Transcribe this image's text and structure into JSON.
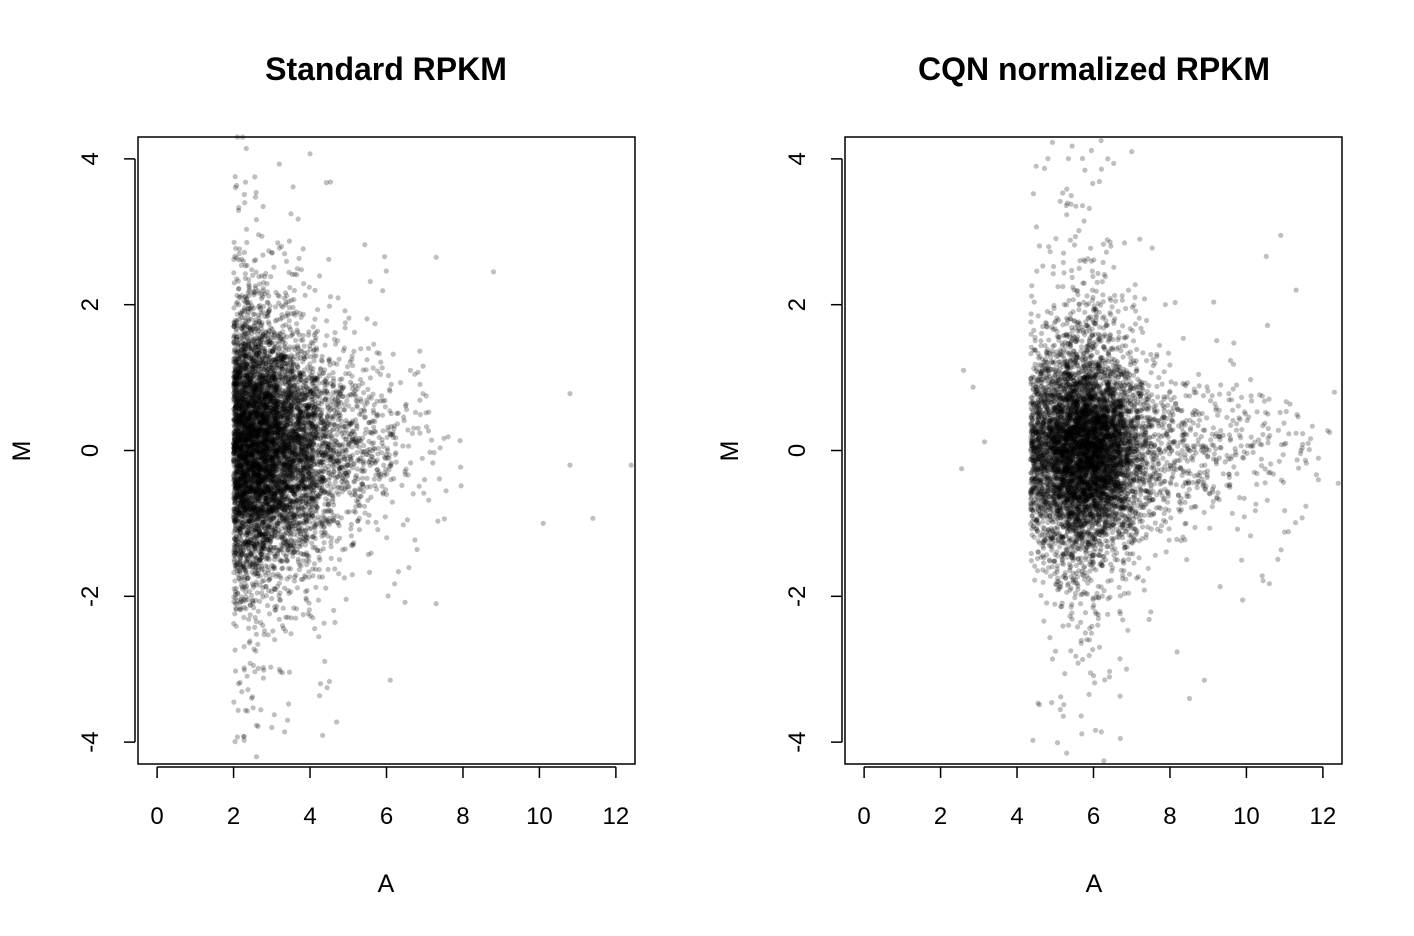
{
  "chart_data": [
    {
      "type": "scatter",
      "title": "Standard RPKM",
      "xlabel": "A",
      "ylabel": "M",
      "xlim": [
        -0.5,
        12.5
      ],
      "ylim": [
        -4.3,
        4.3
      ],
      "xticks": [
        "0",
        "2",
        "4",
        "6",
        "8",
        "10",
        "12"
      ],
      "yticks": [
        "-4",
        "-2",
        "0",
        "2",
        "4"
      ],
      "grid": false,
      "point_color": "#000000",
      "point_opacity": 0.25,
      "n_points": 7000,
      "distribution": {
        "x_min": 2.0,
        "x_core_range": [
          2.0,
          6.0
        ],
        "x_max": 12.5,
        "y_center": 0.05,
        "y_core_spread": 0.6,
        "y_range": [
          -4.2,
          4.3
        ]
      },
      "notable_points": [
        {
          "x": 2.1,
          "y": 4.3
        },
        {
          "x": 4.0,
          "y": 4.07
        },
        {
          "x": 2.6,
          "y": -4.2
        },
        {
          "x": 8.8,
          "y": 2.45
        },
        {
          "x": 10.8,
          "y": -0.2
        },
        {
          "x": 12.4,
          "y": -0.2
        },
        {
          "x": 11.4,
          "y": -0.93
        },
        {
          "x": 10.1,
          "y": -1.0
        },
        {
          "x": 7.3,
          "y": -2.1
        },
        {
          "x": 6.1,
          "y": -3.15
        },
        {
          "x": 2.1,
          "y": -3.93
        },
        {
          "x": 3.0,
          "y": -3.8
        },
        {
          "x": 10.8,
          "y": 0.78
        },
        {
          "x": 7.3,
          "y": 2.65
        }
      ]
    },
    {
      "type": "scatter",
      "title": "CQN normalized RPKM",
      "xlabel": "A",
      "ylabel": "M",
      "xlim": [
        -0.5,
        12.5
      ],
      "ylim": [
        -4.3,
        4.3
      ],
      "xticks": [
        "0",
        "2",
        "4",
        "6",
        "8",
        "10",
        "12"
      ],
      "yticks": [
        "-4",
        "-2",
        "0",
        "2",
        "4"
      ],
      "grid": false,
      "point_color": "#000000",
      "point_opacity": 0.25,
      "n_points": 7000,
      "distribution": {
        "x_center": 5.7,
        "x_core_range": [
          4.5,
          9.0
        ],
        "x_min": 2.5,
        "x_max": 12.5,
        "y_center": 0.0,
        "y_core_spread": 0.65,
        "y_range": [
          -4.15,
          4.25
        ]
      },
      "notable_points": [
        {
          "x": 2.55,
          "y": -0.25
        },
        {
          "x": 2.6,
          "y": 1.1
        },
        {
          "x": 2.85,
          "y": 0.87
        },
        {
          "x": 3.15,
          "y": 0.12
        },
        {
          "x": 6.2,
          "y": 4.25
        },
        {
          "x": 7.0,
          "y": 4.1
        },
        {
          "x": 4.5,
          "y": 3.9
        },
        {
          "x": 5.3,
          "y": -4.15
        },
        {
          "x": 6.7,
          "y": -3.95
        },
        {
          "x": 10.9,
          "y": 2.95
        },
        {
          "x": 11.3,
          "y": 2.2
        },
        {
          "x": 12.4,
          "y": -0.45
        },
        {
          "x": 12.3,
          "y": 0.8
        },
        {
          "x": 8.9,
          "y": -3.15
        },
        {
          "x": 9.9,
          "y": -2.05
        }
      ]
    }
  ]
}
